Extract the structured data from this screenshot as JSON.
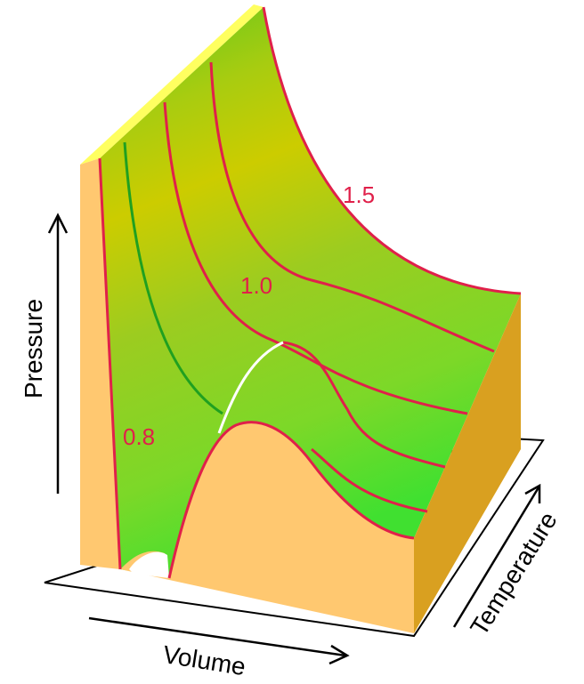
{
  "isotherm_labels": [
    "1.5",
    "1.0",
    "0.8"
  ],
  "axes": {
    "pressure": "Pressure",
    "volume": "Volume",
    "temperature": "Temperature"
  }
}
